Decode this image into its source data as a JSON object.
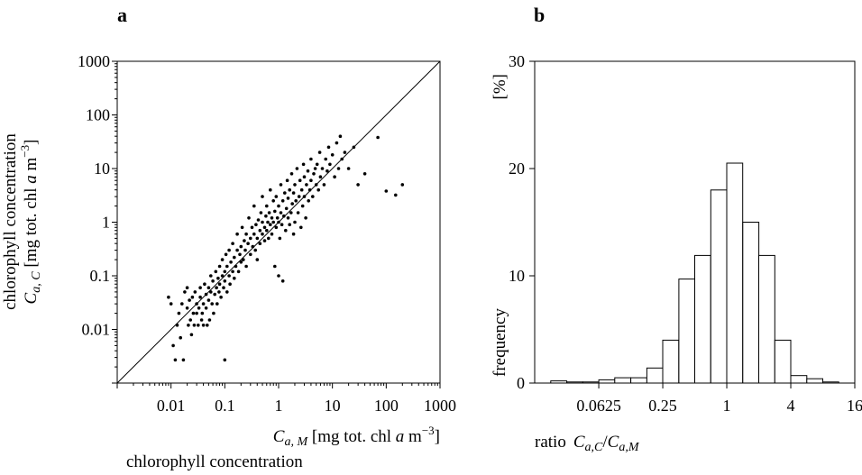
{
  "chart_data": [
    {
      "panel": "a",
      "type": "scatter",
      "title": "",
      "scale": {
        "x": "log",
        "y": "log"
      },
      "xlim": [
        0.001,
        1000
      ],
      "ylim": [
        0.001,
        1000
      ],
      "xlabel_main": "C",
      "xlabel_sub": "a, M",
      "xlabel_rest": " [mg tot. chl ",
      "xlabel_a": "a",
      "xlabel_unit": " m",
      "xlabel_exp": "−3",
      "xlabel_close": "]",
      "xlabel_line2": "chlorophyll concentration",
      "ylabel_line1": "chlorophyll concentration",
      "ylabel_main": "C",
      "ylabel_sub": "a, C",
      "ylabel_rest": " [mg tot. chl ",
      "ylabel_a": "a",
      "ylabel_unit": " m",
      "ylabel_exp": "−3",
      "ylabel_close": "]",
      "xticks": [
        {
          "value": 0.01,
          "label": "0.01"
        },
        {
          "value": 0.1,
          "label": "0.1"
        },
        {
          "value": 1,
          "label": "1"
        },
        {
          "value": 10,
          "label": "10"
        },
        {
          "value": 100,
          "label": "100"
        },
        {
          "value": 1000,
          "label": "1000"
        }
      ],
      "yticks": [
        {
          "value": 0.01,
          "label": "0.01"
        },
        {
          "value": 0.1,
          "label": "0.1"
        },
        {
          "value": 1,
          "label": "1"
        },
        {
          "value": 10,
          "label": "10"
        },
        {
          "value": 100,
          "label": "100"
        },
        {
          "value": 1000,
          "label": "1000"
        }
      ],
      "reference_line": "1:1",
      "points": [
        [
          0.009,
          0.04
        ],
        [
          0.01,
          0.03
        ],
        [
          0.011,
          0.005
        ],
        [
          0.012,
          0.0027
        ],
        [
          0.013,
          0.012
        ],
        [
          0.014,
          0.02
        ],
        [
          0.015,
          0.007
        ],
        [
          0.016,
          0.03
        ],
        [
          0.017,
          0.0027
        ],
        [
          0.018,
          0.05
        ],
        [
          0.02,
          0.06
        ],
        [
          0.02,
          0.025
        ],
        [
          0.021,
          0.012
        ],
        [
          0.022,
          0.035
        ],
        [
          0.023,
          0.015
        ],
        [
          0.024,
          0.008
        ],
        [
          0.025,
          0.04
        ],
        [
          0.026,
          0.02
        ],
        [
          0.027,
          0.012
        ],
        [
          0.028,
          0.05
        ],
        [
          0.03,
          0.03
        ],
        [
          0.03,
          0.02
        ],
        [
          0.032,
          0.012
        ],
        [
          0.033,
          0.025
        ],
        [
          0.035,
          0.04
        ],
        [
          0.035,
          0.06
        ],
        [
          0.037,
          0.015
        ],
        [
          0.038,
          0.02
        ],
        [
          0.04,
          0.03
        ],
        [
          0.04,
          0.012
        ],
        [
          0.042,
          0.07
        ],
        [
          0.045,
          0.045
        ],
        [
          0.045,
          0.025
        ],
        [
          0.047,
          0.012
        ],
        [
          0.05,
          0.06
        ],
        [
          0.05,
          0.035
        ],
        [
          0.052,
          0.015
        ],
        [
          0.055,
          0.1
        ],
        [
          0.055,
          0.05
        ],
        [
          0.058,
          0.03
        ],
        [
          0.06,
          0.08
        ],
        [
          0.062,
          0.02
        ],
        [
          0.065,
          0.045
        ],
        [
          0.068,
          0.12
        ],
        [
          0.07,
          0.06
        ],
        [
          0.072,
          0.03
        ],
        [
          0.075,
          0.09
        ],
        [
          0.078,
          0.05
        ],
        [
          0.08,
          0.15
        ],
        [
          0.08,
          0.07
        ],
        [
          0.085,
          0.04
        ],
        [
          0.09,
          0.1
        ],
        [
          0.09,
          0.2
        ],
        [
          0.095,
          0.06
        ],
        [
          0.1,
          0.0027
        ],
        [
          0.1,
          0.12
        ],
        [
          0.1,
          0.08
        ],
        [
          0.105,
          0.25
        ],
        [
          0.11,
          0.15
        ],
        [
          0.11,
          0.05
        ],
        [
          0.12,
          0.1
        ],
        [
          0.12,
          0.3
        ],
        [
          0.125,
          0.07
        ],
        [
          0.13,
          0.18
        ],
        [
          0.14,
          0.12
        ],
        [
          0.14,
          0.4
        ],
        [
          0.15,
          0.09
        ],
        [
          0.15,
          0.22
        ],
        [
          0.16,
          0.15
        ],
        [
          0.17,
          0.3
        ],
        [
          0.17,
          0.6
        ],
        [
          0.18,
          0.12
        ],
        [
          0.19,
          0.25
        ],
        [
          0.2,
          0.35
        ],
        [
          0.2,
          0.18
        ],
        [
          0.21,
          0.8
        ],
        [
          0.22,
          0.2
        ],
        [
          0.23,
          0.45
        ],
        [
          0.24,
          0.3
        ],
        [
          0.25,
          0.15
        ],
        [
          0.25,
          0.6
        ],
        [
          0.27,
          0.4
        ],
        [
          0.28,
          1.2
        ],
        [
          0.3,
          0.25
        ],
        [
          0.3,
          0.5
        ],
        [
          0.32,
          0.8
        ],
        [
          0.33,
          0.35
        ],
        [
          0.35,
          0.6
        ],
        [
          0.35,
          2.0
        ],
        [
          0.37,
          0.3
        ],
        [
          0.38,
          0.9
        ],
        [
          0.4,
          0.5
        ],
        [
          0.4,
          0.2
        ],
        [
          0.42,
          1.1
        ],
        [
          0.45,
          0.7
        ],
        [
          0.45,
          0.4
        ],
        [
          0.47,
          1.5
        ],
        [
          0.5,
          0.6
        ],
        [
          0.5,
          1.0
        ],
        [
          0.5,
          3.0
        ],
        [
          0.55,
          0.8
        ],
        [
          0.55,
          0.45
        ],
        [
          0.58,
          1.3
        ],
        [
          0.6,
          0.7
        ],
        [
          0.6,
          2.0
        ],
        [
          0.63,
          1.0
        ],
        [
          0.65,
          0.5
        ],
        [
          0.67,
          1.5
        ],
        [
          0.7,
          0.9
        ],
        [
          0.7,
          4.0
        ],
        [
          0.75,
          1.2
        ],
        [
          0.75,
          0.6
        ],
        [
          0.8,
          2.5
        ],
        [
          0.8,
          1.0
        ],
        [
          0.85,
          0.15
        ],
        [
          0.85,
          1.6
        ],
        [
          0.9,
          0.8
        ],
        [
          0.9,
          3.0
        ],
        [
          0.95,
          1.2
        ],
        [
          1.0,
          0.1
        ],
        [
          1.0,
          1.0
        ],
        [
          1.0,
          2.0
        ],
        [
          1.05,
          0.5
        ],
        [
          1.1,
          1.5
        ],
        [
          1.1,
          5.0
        ],
        [
          1.15,
          0.9
        ],
        [
          1.2,
          2.5
        ],
        [
          1.2,
          0.08
        ],
        [
          1.25,
          1.3
        ],
        [
          1.3,
          3.5
        ],
        [
          1.35,
          0.7
        ],
        [
          1.4,
          1.8
        ],
        [
          1.45,
          6.0
        ],
        [
          1.5,
          1.2
        ],
        [
          1.5,
          2.8
        ],
        [
          1.6,
          0.9
        ],
        [
          1.6,
          4.0
        ],
        [
          1.7,
          1.5
        ],
        [
          1.75,
          8.0
        ],
        [
          1.8,
          2.2
        ],
        [
          1.9,
          0.6
        ],
        [
          1.9,
          3.5
        ],
        [
          2.0,
          1.0
        ],
        [
          2.0,
          5.0
        ],
        [
          2.1,
          2.5
        ],
        [
          2.2,
          10.0
        ],
        [
          2.3,
          1.5
        ],
        [
          2.4,
          3.0
        ],
        [
          2.5,
          6.0
        ],
        [
          2.6,
          0.8
        ],
        [
          2.7,
          4.0
        ],
        [
          2.8,
          2.0
        ],
        [
          2.9,
          12.0
        ],
        [
          3.0,
          3.0
        ],
        [
          3.0,
          7.0
        ],
        [
          3.2,
          1.2
        ],
        [
          3.3,
          5.0
        ],
        [
          3.5,
          9.0
        ],
        [
          3.6,
          2.5
        ],
        [
          3.8,
          4.0
        ],
        [
          4.0,
          15.0
        ],
        [
          4.0,
          6.0
        ],
        [
          4.3,
          3.0
        ],
        [
          4.5,
          8.0
        ],
        [
          4.8,
          10.0
        ],
        [
          5.0,
          5.0
        ],
        [
          5.2,
          12.0
        ],
        [
          5.5,
          4.0
        ],
        [
          5.8,
          20.0
        ],
        [
          6.0,
          7.0
        ],
        [
          6.5,
          10.0
        ],
        [
          7.0,
          5.0
        ],
        [
          7.5,
          15.0
        ],
        [
          8.0,
          9.0
        ],
        [
          8.5,
          25.0
        ],
        [
          9.0,
          12.0
        ],
        [
          10.0,
          18.0
        ],
        [
          11.0,
          7.0
        ],
        [
          12.0,
          30.0
        ],
        [
          13.0,
          10.0
        ],
        [
          14.0,
          40.0
        ],
        [
          15.0,
          15.0
        ],
        [
          17.0,
          20.0
        ],
        [
          20.0,
          10.0
        ],
        [
          25.0,
          25.0
        ],
        [
          30.0,
          5.0
        ],
        [
          40.0,
          8.0
        ],
        [
          70.0,
          38.0
        ],
        [
          100.0,
          3.8
        ],
        [
          150.0,
          3.2
        ],
        [
          200.0,
          5.0
        ]
      ]
    },
    {
      "panel": "b",
      "type": "bar",
      "title": "",
      "ylabel": "frequency",
      "yunit": "[%]",
      "xlabel_prefix": "ratio",
      "xlabel_num_main": "C",
      "xlabel_num_sub": "a,C",
      "xlabel_slash": "/",
      "xlabel_den_main": "C",
      "xlabel_den_sub": "a,M",
      "scale": {
        "x": "log2"
      },
      "xlim": [
        0.0156,
        16
      ],
      "ylim": [
        0,
        30
      ],
      "xticks": [
        {
          "value": 0.0625,
          "label": "0.0625"
        },
        {
          "value": 0.25,
          "label": "0.25"
        },
        {
          "value": 1,
          "label": "1"
        },
        {
          "value": 4,
          "label": "4"
        },
        {
          "value": 16,
          "label": "16"
        }
      ],
      "yticks": [
        {
          "value": 0,
          "label": "0"
        },
        {
          "value": 10,
          "label": "10"
        },
        {
          "value": 20,
          "label": "20"
        },
        {
          "value": 30,
          "label": "30"
        }
      ],
      "bin_edges": [
        0.0221,
        0.0313,
        0.0442,
        0.0625,
        0.0884,
        0.125,
        0.177,
        0.25,
        0.354,
        0.5,
        0.707,
        1.0,
        1.414,
        2.0,
        2.83,
        4.0,
        5.66,
        8.0
      ],
      "values": [
        0.2,
        0.1,
        0.1,
        0.3,
        0.5,
        0.5,
        1.4,
        4.0,
        9.7,
        11.9,
        18.0,
        20.5,
        15.0,
        11.9,
        4.0,
        0.7,
        0.4,
        0.1
      ]
    }
  ],
  "labels": {
    "panel_a": "a",
    "panel_b": "b"
  }
}
